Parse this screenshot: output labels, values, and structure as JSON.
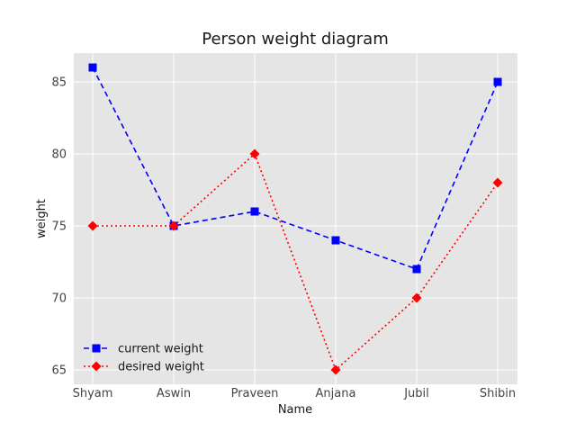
{
  "chart_data": {
    "type": "line",
    "title": "Person weight diagram",
    "xlabel": "Name",
    "ylabel": "weight",
    "categories": [
      "Shyam",
      "Aswin",
      "Praveen",
      "Anjana",
      "Jubil",
      "Shibin"
    ],
    "ylim": [
      64,
      87
    ],
    "yticks": [
      65,
      70,
      75,
      80,
      85
    ],
    "grid": true,
    "legend_position": "lower-left",
    "series": [
      {
        "name": "current weight",
        "values": [
          86,
          75,
          76,
          74,
          72,
          85
        ],
        "color": "#0000ff",
        "line_style": "dashed",
        "marker": "square"
      },
      {
        "name": "desired weight",
        "values": [
          75,
          75,
          80,
          65,
          70,
          78
        ],
        "color": "#ff0000",
        "line_style": "dotted",
        "marker": "diamond"
      }
    ]
  },
  "colors": {
    "plot_background": "#e5e5e5",
    "grid": "#ffffff"
  }
}
